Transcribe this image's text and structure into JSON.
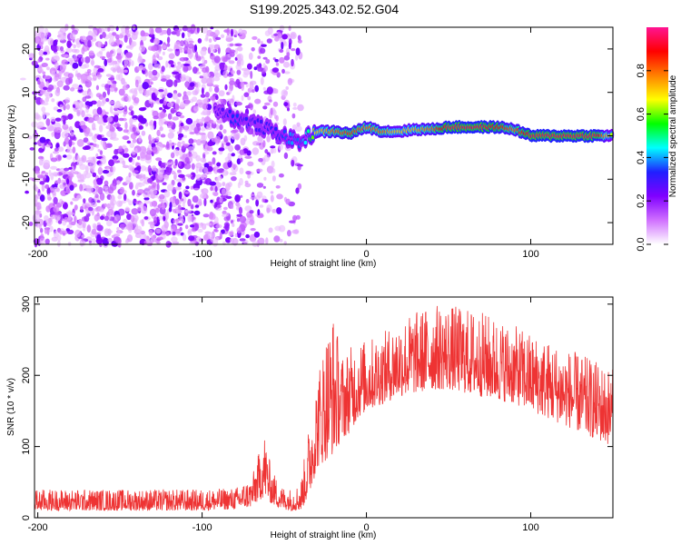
{
  "title": "S199.2025.343.02.52.G04",
  "chart_data": [
    {
      "type": "heatmap",
      "title": "",
      "xlabel": "Height of straight line (km)",
      "ylabel": "Frequency (Hz)",
      "xlim": [
        -202,
        150
      ],
      "ylim": [
        -25,
        25
      ],
      "xticks": [
        -200,
        -100,
        0,
        100
      ],
      "xtick_labels": [
        "-200",
        "-100",
        "0",
        "100"
      ],
      "yticks": [
        -20,
        -10,
        0,
        10,
        20
      ],
      "ytick_labels": [
        "-20",
        "-10",
        "0",
        "10",
        "20"
      ],
      "colorbar": {
        "label": "Normalized spectral amplitude",
        "range": [
          0,
          1
        ],
        "ticks": [
          0.0,
          0.2,
          0.4,
          0.6,
          0.8
        ],
        "tick_labels": [
          "0.0",
          "0.2",
          "0.4",
          "0.6",
          "0.8"
        ],
        "colors": [
          "#ffffff",
          "#d070ff",
          "#8000ff",
          "#2020ff",
          "#00ffff",
          "#00ff00",
          "#ffff00",
          "#ff8000",
          "#ff0000",
          "#ff1493"
        ]
      },
      "ridge": {
        "description_x": [
          -90,
          -80,
          -70,
          -60,
          -50,
          -45,
          -40,
          -35,
          -30,
          -20,
          -10,
          0,
          10,
          20,
          30,
          40,
          50,
          60,
          70,
          80,
          90,
          100,
          110,
          120,
          130,
          140,
          150
        ],
        "freq_y": [
          6,
          4,
          3,
          1.5,
          0,
          -1,
          -1.5,
          0,
          1,
          1,
          0.5,
          2,
          1,
          1,
          1.5,
          1.5,
          2,
          2,
          2,
          2,
          1.5,
          0,
          0,
          0,
          0,
          0,
          0
        ],
        "amplitude": [
          0.25,
          0.35,
          0.3,
          0.3,
          0.35,
          0.4,
          0.35,
          0.5,
          0.7,
          0.8,
          0.85,
          0.8,
          0.8,
          0.7,
          0.75,
          0.8,
          0.95,
          0.95,
          0.95,
          0.9,
          0.8,
          0.95,
          0.95,
          0.95,
          0.95,
          0.95,
          0.6
        ]
      },
      "noise_region": {
        "x_start": -202,
        "x_end": -40,
        "amplitude_range": [
          0.05,
          0.25
        ]
      }
    },
    {
      "type": "line",
      "title": "",
      "xlabel": "Height of straight line (km)",
      "ylabel": "SNR (10 * v/v)",
      "xlim": [
        -202,
        150
      ],
      "ylim": [
        0,
        310
      ],
      "xticks": [
        -200,
        -100,
        0,
        100
      ],
      "xtick_labels": [
        "-200",
        "-100",
        "0",
        "100"
      ],
      "yticks": [
        0,
        100,
        200,
        300
      ],
      "ytick_labels": [
        "0",
        "100",
        "200",
        "300"
      ],
      "series": [
        {
          "name": "SNR",
          "color": "#ee3333",
          "envelope_x": [
            -202,
            -150,
            -100,
            -80,
            -70,
            -62,
            -58,
            -52,
            -45,
            -40,
            -35,
            -30,
            -25,
            -20,
            -15,
            -10,
            -5,
            0,
            10,
            20,
            30,
            40,
            50,
            60,
            70,
            80,
            90,
            100,
            110,
            120,
            130,
            140,
            150
          ],
          "envelope_low": [
            10,
            10,
            10,
            12,
            15,
            30,
            20,
            12,
            10,
            10,
            30,
            70,
            80,
            90,
            110,
            120,
            140,
            150,
            160,
            170,
            175,
            180,
            180,
            175,
            170,
            165,
            160,
            150,
            140,
            130,
            120,
            110,
            100
          ],
          "envelope_high": [
            40,
            40,
            40,
            42,
            55,
            120,
            70,
            45,
            40,
            50,
            130,
            200,
            260,
            290,
            230,
            240,
            250,
            250,
            260,
            280,
            290,
            300,
            300,
            295,
            290,
            280,
            270,
            260,
            250,
            240,
            230,
            220,
            210
          ]
        }
      ]
    }
  ]
}
